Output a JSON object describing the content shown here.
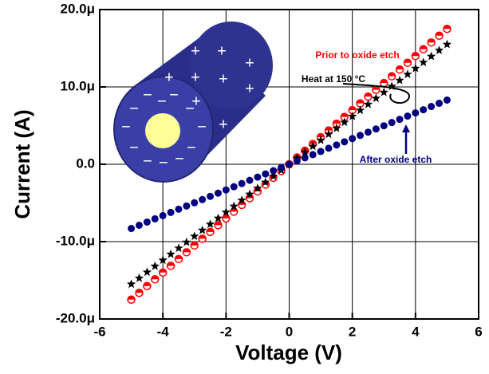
{
  "chart_data": {
    "type": "scatter",
    "xlabel": "Voltage (V)",
    "ylabel": "Current (A)",
    "xlim": [
      -6,
      6
    ],
    "xticks": [
      -6,
      -4,
      -2,
      0,
      2,
      4,
      6
    ],
    "ylim": [
      -2e-05,
      2e-05
    ],
    "yticks": [
      {
        "value": -2e-05,
        "label": "-20.0μ"
      },
      {
        "value": -1e-05,
        "label": "-10.0μ"
      },
      {
        "value": 0,
        "label": "0.0"
      },
      {
        "value": 1e-05,
        "label": "10.0μ"
      },
      {
        "value": 2e-05,
        "label": "20.0μ"
      }
    ],
    "grid": true,
    "x": [
      -5,
      -4.75,
      -4.5,
      -4.25,
      -4,
      -3.75,
      -3.5,
      -3.25,
      -3,
      -2.75,
      -2.5,
      -2.25,
      -2,
      -1.75,
      -1.5,
      -1.25,
      -1,
      -0.75,
      -0.5,
      -0.25,
      0,
      0.25,
      0.5,
      0.75,
      1,
      1.25,
      1.5,
      1.75,
      2,
      2.25,
      2.5,
      2.75,
      3,
      3.25,
      3.5,
      3.75,
      4,
      4.25,
      4.5,
      4.75,
      5
    ],
    "series": [
      {
        "name": "Prior to oxide etch",
        "color": "#ff0000",
        "marker": "half-circle",
        "values": [
          -1.75e-05,
          -1.6625e-05,
          -1.575e-05,
          -1.4875e-05,
          -1.4e-05,
          -1.3125e-05,
          -1.225e-05,
          -1.1375e-05,
          -1.05e-05,
          -9.625e-06,
          -8.75e-06,
          -7.875e-06,
          -7e-06,
          -6.125e-06,
          -5.25e-06,
          -4.375e-06,
          -3.5e-06,
          -2.625e-06,
          -1.75e-06,
          -8.75e-07,
          0,
          8.75e-07,
          1.75e-06,
          2.625e-06,
          3.5e-06,
          4.375e-06,
          5.25e-06,
          6.125e-06,
          7e-06,
          7.875e-06,
          8.75e-06,
          9.625e-06,
          1.05e-05,
          1.1375e-05,
          1.225e-05,
          1.3125e-05,
          1.4e-05,
          1.4875e-05,
          1.575e-05,
          1.6625e-05,
          1.75e-05
        ]
      },
      {
        "name": "Heat at 150 °C",
        "color": "#000000",
        "marker": "star",
        "values": [
          -1.55e-05,
          -1.4725e-05,
          -1.395e-05,
          -1.3175e-05,
          -1.24e-05,
          -1.1625e-05,
          -1.085e-05,
          -1.0075e-05,
          -9.3e-06,
          -8.525e-06,
          -7.75e-06,
          -6.975e-06,
          -6.2e-06,
          -5.425e-06,
          -4.65e-06,
          -3.875e-06,
          -3.1e-06,
          -2.325e-06,
          -1.55e-06,
          -7.75e-07,
          0,
          7.75e-07,
          1.55e-06,
          2.325e-06,
          3.1e-06,
          3.875e-06,
          4.65e-06,
          5.425e-06,
          6.2e-06,
          6.975e-06,
          7.75e-06,
          8.525e-06,
          9.3e-06,
          1.0075e-05,
          1.085e-05,
          1.1625e-05,
          1.24e-05,
          1.3175e-05,
          1.395e-05,
          1.4725e-05,
          1.55e-05
        ]
      },
      {
        "name": "After oxide etch",
        "color": "#000080",
        "marker": "circle",
        "values": [
          -8.3e-06,
          -7.885e-06,
          -7.47e-06,
          -7.055e-06,
          -6.64e-06,
          -6.225e-06,
          -5.81e-06,
          -5.395e-06,
          -4.98e-06,
          -4.565e-06,
          -4.15e-06,
          -3.735e-06,
          -3.32e-06,
          -2.905e-06,
          -2.49e-06,
          -2.075e-06,
          -1.66e-06,
          -1.245e-06,
          -8.3e-07,
          -4.15e-07,
          0,
          4.15e-07,
          8.3e-07,
          1.245e-06,
          1.66e-06,
          2.075e-06,
          2.49e-06,
          2.905e-06,
          3.32e-06,
          3.735e-06,
          4.15e-06,
          4.565e-06,
          4.98e-06,
          5.395e-06,
          5.81e-06,
          6.225e-06,
          6.64e-06,
          7.055e-06,
          7.47e-06,
          7.885e-06,
          8.3e-06
        ]
      }
    ],
    "inset": {
      "plus": "+",
      "minus": "−"
    }
  }
}
